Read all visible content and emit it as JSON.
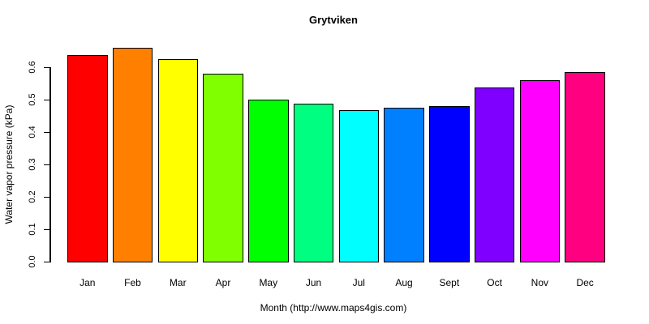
{
  "chart_data": {
    "type": "bar",
    "title": "Grytviken",
    "xlabel": "Month (http://www.maps4gis.com)",
    "ylabel": "Water vapor pressure (kPa)",
    "categories": [
      "Jan",
      "Feb",
      "Mar",
      "Apr",
      "May",
      "Jun",
      "Jul",
      "Aug",
      "Sept",
      "Oct",
      "Nov",
      "Dec"
    ],
    "values": [
      0.638,
      0.66,
      0.625,
      0.582,
      0.5,
      0.488,
      0.469,
      0.475,
      0.481,
      0.538,
      0.561,
      0.585
    ],
    "bar_colors": [
      "#FF0000",
      "#FF8000",
      "#FFFF00",
      "#80FF00",
      "#00FF00",
      "#00FF80",
      "#00FFFF",
      "#0080FF",
      "#0000FF",
      "#8000FF",
      "#FF00FF",
      "#FF0080"
    ],
    "bar_border_color": "#000000",
    "yticks": [
      0.0,
      0.1,
      0.2,
      0.3,
      0.4,
      0.5,
      0.6
    ],
    "ytick_labels": [
      "0.0",
      "0.1",
      "0.2",
      "0.3",
      "0.4",
      "0.5",
      "0.6"
    ],
    "ylim": [
      0,
      0.6
    ],
    "grid": false,
    "legend": false,
    "axis_color": "#000000",
    "text_color": "#000000",
    "background": "#FFFFFF"
  }
}
